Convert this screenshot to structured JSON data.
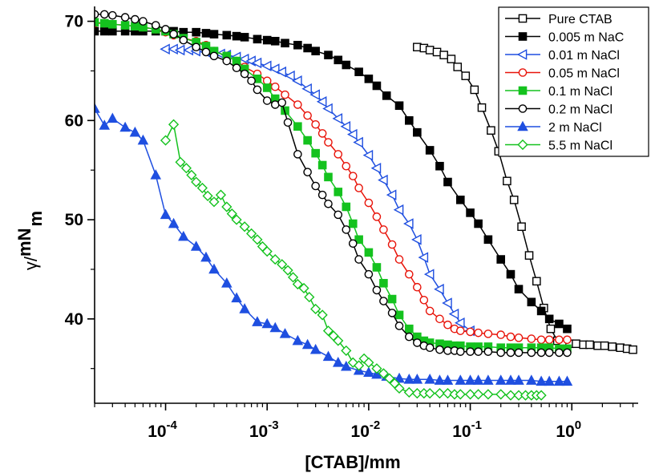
{
  "chart_data": {
    "type": "scatter",
    "xlabel": "[CTAB]/mm",
    "ylabel": {
      "gamma": "γ",
      "sup": "mN",
      "sub": "m"
    },
    "xscale": "log",
    "xlim": [
      2e-05,
      4.5
    ],
    "ylim": [
      31.5,
      71.5
    ],
    "xticks": [
      {
        "value": 0.0001,
        "base": "10",
        "exp": "-4"
      },
      {
        "value": 0.001,
        "base": "10",
        "exp": "-3"
      },
      {
        "value": 0.01,
        "base": "10",
        "exp": "-2"
      },
      {
        "value": 0.1,
        "base": "10",
        "exp": "-1"
      },
      {
        "value": 1,
        "base": "10",
        "exp": "0"
      }
    ],
    "yticks": [
      40,
      50,
      60,
      70
    ],
    "legend_position": "top-right",
    "series": [
      {
        "name": "Pure CTAB",
        "color": "#000000",
        "marker": "square",
        "filled": false,
        "x": [
          0.03,
          0.035,
          0.04,
          0.047,
          0.055,
          0.065,
          0.075,
          0.09,
          0.11,
          0.13,
          0.16,
          0.19,
          0.23,
          0.27,
          0.32,
          0.38,
          0.45,
          0.53,
          0.62,
          0.72,
          0.82,
          0.95,
          1.1,
          1.3,
          1.5,
          1.8,
          2.1,
          2.5,
          3.0,
          3.5,
          4.0
        ],
        "y": [
          67.4,
          67.3,
          67.1,
          66.9,
          66.6,
          66.2,
          65.4,
          64.5,
          63.1,
          61.3,
          59.0,
          56.9,
          53.9,
          52.0,
          49.3,
          46.4,
          43.8,
          41.1,
          39.0,
          37.8,
          37.6,
          37.5,
          37.5,
          37.4,
          37.4,
          37.3,
          37.3,
          37.2,
          37.1,
          37.0,
          36.9
        ]
      },
      {
        "name": "0.005 m NaC",
        "color": "#000000",
        "marker": "square",
        "filled": true,
        "x": [
          2e-05,
          2.5e-05,
          3e-05,
          4e-05,
          5e-05,
          6e-05,
          8e-05,
          0.0001,
          0.00012,
          0.00015,
          0.0002,
          0.00025,
          0.0003,
          0.0004,
          0.0005,
          0.0006,
          0.0008,
          0.001,
          0.0012,
          0.0015,
          0.002,
          0.0025,
          0.003,
          0.004,
          0.005,
          0.006,
          0.008,
          0.01,
          0.012,
          0.015,
          0.02,
          0.025,
          0.03,
          0.04,
          0.05,
          0.06,
          0.08,
          0.1,
          0.12,
          0.15,
          0.2,
          0.25,
          0.3,
          0.4,
          0.5,
          0.6,
          0.75,
          0.9
        ],
        "y": [
          69.0,
          69.0,
          69.0,
          69.0,
          69.0,
          69.0,
          69.0,
          69.0,
          69.0,
          68.9,
          68.9,
          68.8,
          68.7,
          68.6,
          68.5,
          68.4,
          68.2,
          68.1,
          68.0,
          67.8,
          67.6,
          67.3,
          67.0,
          66.6,
          66.1,
          65.6,
          64.9,
          64.2,
          63.5,
          62.5,
          61.5,
          60.0,
          58.8,
          57.0,
          55.4,
          53.8,
          52.0,
          50.7,
          49.6,
          48.0,
          46.0,
          44.5,
          43.0,
          41.7,
          40.8,
          40.0,
          39.5,
          39.0
        ]
      },
      {
        "name": "0.01 m NaCl",
        "color": "#1F4FE0",
        "marker": "tri-left",
        "filled": false,
        "x": [
          0.0001,
          0.00012,
          0.00014,
          0.00017,
          0.0002,
          0.00025,
          0.0003,
          0.00035,
          0.0004,
          0.0005,
          0.0006,
          0.0007,
          0.0008,
          0.001,
          0.0012,
          0.0014,
          0.0017,
          0.002,
          0.0025,
          0.003,
          0.0035,
          0.004,
          0.005,
          0.006,
          0.007,
          0.008,
          0.01,
          0.012,
          0.014,
          0.017,
          0.02,
          0.025,
          0.03,
          0.035,
          0.04,
          0.05,
          0.06,
          0.07,
          0.08,
          0.1
        ],
        "y": [
          67.2,
          67.2,
          67.1,
          67.1,
          67.0,
          66.9,
          66.8,
          66.7,
          66.6,
          66.4,
          66.2,
          66.0,
          65.8,
          65.5,
          65.2,
          64.9,
          64.5,
          64.0,
          63.2,
          62.6,
          61.9,
          61.2,
          60.2,
          59.4,
          58.6,
          57.8,
          56.5,
          55.2,
          54.0,
          52.5,
          51.0,
          49.6,
          48.0,
          46.2,
          44.5,
          43.0,
          41.6,
          40.5,
          39.6,
          38.8
        ]
      },
      {
        "name": "0.05 m NaCl",
        "color": "#E8140A",
        "marker": "circle",
        "filled": false,
        "x": [
          2e-05,
          2.5e-05,
          3e-05,
          4e-05,
          5e-05,
          6e-05,
          8e-05,
          0.0001,
          0.00012,
          0.00015,
          0.0002,
          0.00025,
          0.0003,
          0.0004,
          0.0005,
          0.0006,
          0.0008,
          0.001,
          0.0012,
          0.0015,
          0.002,
          0.0025,
          0.003,
          0.0035,
          0.004,
          0.005,
          0.006,
          0.007,
          0.008,
          0.01,
          0.012,
          0.014,
          0.017,
          0.02,
          0.025,
          0.03,
          0.035,
          0.04,
          0.05,
          0.06,
          0.07,
          0.08,
          0.1,
          0.12,
          0.15,
          0.2,
          0.25,
          0.3,
          0.4,
          0.5,
          0.6,
          0.75,
          0.9
        ],
        "y": [
          69.8,
          69.8,
          69.7,
          69.6,
          69.5,
          69.4,
          69.2,
          68.9,
          68.6,
          68.3,
          68.0,
          67.6,
          67.0,
          66.5,
          66.0,
          65.4,
          64.7,
          64.0,
          63.4,
          62.6,
          61.6,
          60.5,
          59.6,
          58.7,
          57.8,
          56.6,
          55.4,
          54.4,
          53.2,
          51.7,
          50.3,
          49.0,
          47.5,
          46.0,
          44.5,
          43.2,
          41.9,
          40.8,
          40.0,
          39.4,
          39.0,
          38.8,
          38.7,
          38.6,
          38.5,
          38.4,
          38.2,
          38.1,
          38.0,
          37.9,
          37.9,
          37.9,
          37.9
        ]
      },
      {
        "name": "0.1 m NaCl",
        "color": "#14C21E",
        "marker": "square",
        "filled": true,
        "x": [
          2e-05,
          2.5e-05,
          3e-05,
          4e-05,
          5e-05,
          6e-05,
          8e-05,
          0.0001,
          0.00012,
          0.00015,
          0.0002,
          0.00025,
          0.0003,
          0.0004,
          0.0005,
          0.0006,
          0.0008,
          0.001,
          0.0012,
          0.0015,
          0.002,
          0.0025,
          0.003,
          0.0035,
          0.004,
          0.005,
          0.006,
          0.007,
          0.008,
          0.01,
          0.012,
          0.014,
          0.017,
          0.02,
          0.025,
          0.03,
          0.035,
          0.04,
          0.05,
          0.06,
          0.07,
          0.08,
          0.1,
          0.12,
          0.15,
          0.2,
          0.25,
          0.3,
          0.4,
          0.5,
          0.6,
          0.75,
          0.9
        ],
        "y": [
          69.9,
          69.8,
          69.7,
          69.6,
          69.5,
          69.4,
          69.2,
          69.0,
          68.7,
          68.3,
          67.9,
          67.5,
          67.0,
          66.5,
          66.0,
          65.2,
          64.2,
          63.3,
          62.2,
          61.0,
          59.4,
          58.0,
          56.7,
          55.5,
          54.3,
          52.8,
          51.3,
          49.6,
          48.0,
          46.7,
          45.2,
          43.6,
          42.0,
          40.4,
          39.0,
          38.2,
          37.8,
          37.6,
          37.5,
          37.4,
          37.3,
          37.3,
          37.2,
          37.2,
          37.2,
          37.1,
          37.1,
          37.1,
          37.1,
          37.1,
          37.1,
          37.0,
          37.0
        ]
      },
      {
        "name": "0.2 m NaCl",
        "color": "#000000",
        "marker": "circle",
        "filled": false,
        "x": [
          2e-05,
          2.5e-05,
          3e-05,
          4e-05,
          5e-05,
          6e-05,
          8e-05,
          0.0001,
          0.00012,
          0.00015,
          0.0002,
          0.00025,
          0.0003,
          0.0004,
          0.0005,
          0.0006,
          0.0007,
          0.0008,
          0.001,
          0.0012,
          0.0014,
          0.0016,
          0.002,
          0.0025,
          0.003,
          0.0035,
          0.004,
          0.005,
          0.006,
          0.007,
          0.008,
          0.01,
          0.012,
          0.014,
          0.017,
          0.02,
          0.025,
          0.03,
          0.035,
          0.04,
          0.05,
          0.06,
          0.07,
          0.08,
          0.1,
          0.12,
          0.15,
          0.2,
          0.25,
          0.3,
          0.4,
          0.5,
          0.6,
          0.75,
          0.9
        ],
        "y": [
          70.7,
          70.7,
          70.6,
          70.4,
          70.2,
          70.0,
          69.6,
          69.2,
          68.7,
          68.1,
          67.4,
          66.9,
          66.5,
          66.0,
          65.3,
          64.7,
          64.0,
          63.1,
          62.0,
          61.6,
          61.8,
          59.8,
          56.6,
          54.8,
          53.4,
          52.5,
          51.6,
          50.5,
          49.0,
          47.6,
          46.0,
          44.5,
          42.9,
          41.8,
          40.6,
          39.3,
          38.2,
          37.6,
          37.3,
          37.1,
          36.9,
          36.8,
          36.8,
          36.7,
          36.7,
          36.7,
          36.7,
          36.6,
          36.6,
          36.6,
          36.6,
          36.6,
          36.6,
          36.6,
          36.6
        ]
      },
      {
        "name": "2 m NaCl",
        "color": "#1F4FE0",
        "marker": "triangle",
        "filled": true,
        "x": [
          2e-05,
          2.5e-05,
          3e-05,
          4e-05,
          5e-05,
          6e-05,
          8e-05,
          0.0001,
          0.00012,
          0.00015,
          0.0002,
          0.00025,
          0.0003,
          0.0004,
          0.0005,
          0.0006,
          0.0008,
          0.001,
          0.0012,
          0.0015,
          0.002,
          0.0025,
          0.003,
          0.004,
          0.005,
          0.006,
          0.008,
          0.01,
          0.012,
          0.015,
          0.02,
          0.025,
          0.03,
          0.04,
          0.05,
          0.06,
          0.08,
          0.1,
          0.12,
          0.15,
          0.2,
          0.25,
          0.3,
          0.4,
          0.5,
          0.6,
          0.75,
          0.9
        ],
        "y": [
          61.2,
          59.5,
          60.2,
          59.3,
          58.8,
          58.0,
          54.5,
          50.5,
          49.6,
          48.3,
          47.3,
          46.2,
          45.0,
          43.6,
          42.1,
          41.0,
          39.7,
          39.5,
          39.1,
          38.5,
          37.8,
          37.4,
          36.9,
          36.2,
          35.6,
          35.2,
          34.8,
          34.6,
          34.4,
          34.2,
          34.0,
          33.9,
          33.9,
          33.9,
          33.8,
          33.8,
          33.8,
          33.8,
          33.8,
          33.8,
          33.8,
          33.8,
          33.8,
          33.8,
          33.7,
          33.7,
          33.7,
          33.7
        ]
      },
      {
        "name": "5.5 m NaCl",
        "color": "#14C21E",
        "marker": "diamond",
        "filled": false,
        "x": [
          0.0001,
          0.00012,
          0.00014,
          0.00016,
          0.00018,
          0.0002,
          0.00023,
          0.00026,
          0.0003,
          0.00035,
          0.0004,
          0.00045,
          0.0005,
          0.0006,
          0.0007,
          0.0008,
          0.0009,
          0.001,
          0.0012,
          0.0014,
          0.0016,
          0.0018,
          0.002,
          0.0023,
          0.0026,
          0.003,
          0.0035,
          0.004,
          0.0045,
          0.005,
          0.006,
          0.007,
          0.008,
          0.009,
          0.01,
          0.012,
          0.014,
          0.016,
          0.018,
          0.02,
          0.025,
          0.03,
          0.035,
          0.04,
          0.05,
          0.06,
          0.07,
          0.08,
          0.1,
          0.12,
          0.15,
          0.2,
          0.25,
          0.3,
          0.35,
          0.4,
          0.45,
          0.5
        ],
        "y": [
          58.0,
          59.6,
          55.8,
          55.2,
          54.5,
          53.8,
          53.2,
          52.4,
          51.8,
          52.5,
          51.3,
          50.6,
          50.0,
          49.3,
          48.6,
          48.0,
          47.3,
          46.8,
          46.0,
          45.5,
          44.9,
          44.2,
          43.5,
          43.1,
          42.2,
          41.0,
          40.4,
          38.8,
          38.3,
          37.8,
          36.8,
          35.6,
          35.3,
          36.0,
          35.6,
          35.0,
          34.5,
          34.0,
          33.5,
          33.0,
          32.6,
          32.5,
          32.5,
          32.5,
          32.5,
          32.5,
          32.4,
          32.4,
          32.4,
          32.4,
          32.4,
          32.4,
          32.3,
          32.3,
          32.3,
          32.3,
          32.3,
          32.3
        ]
      }
    ]
  }
}
